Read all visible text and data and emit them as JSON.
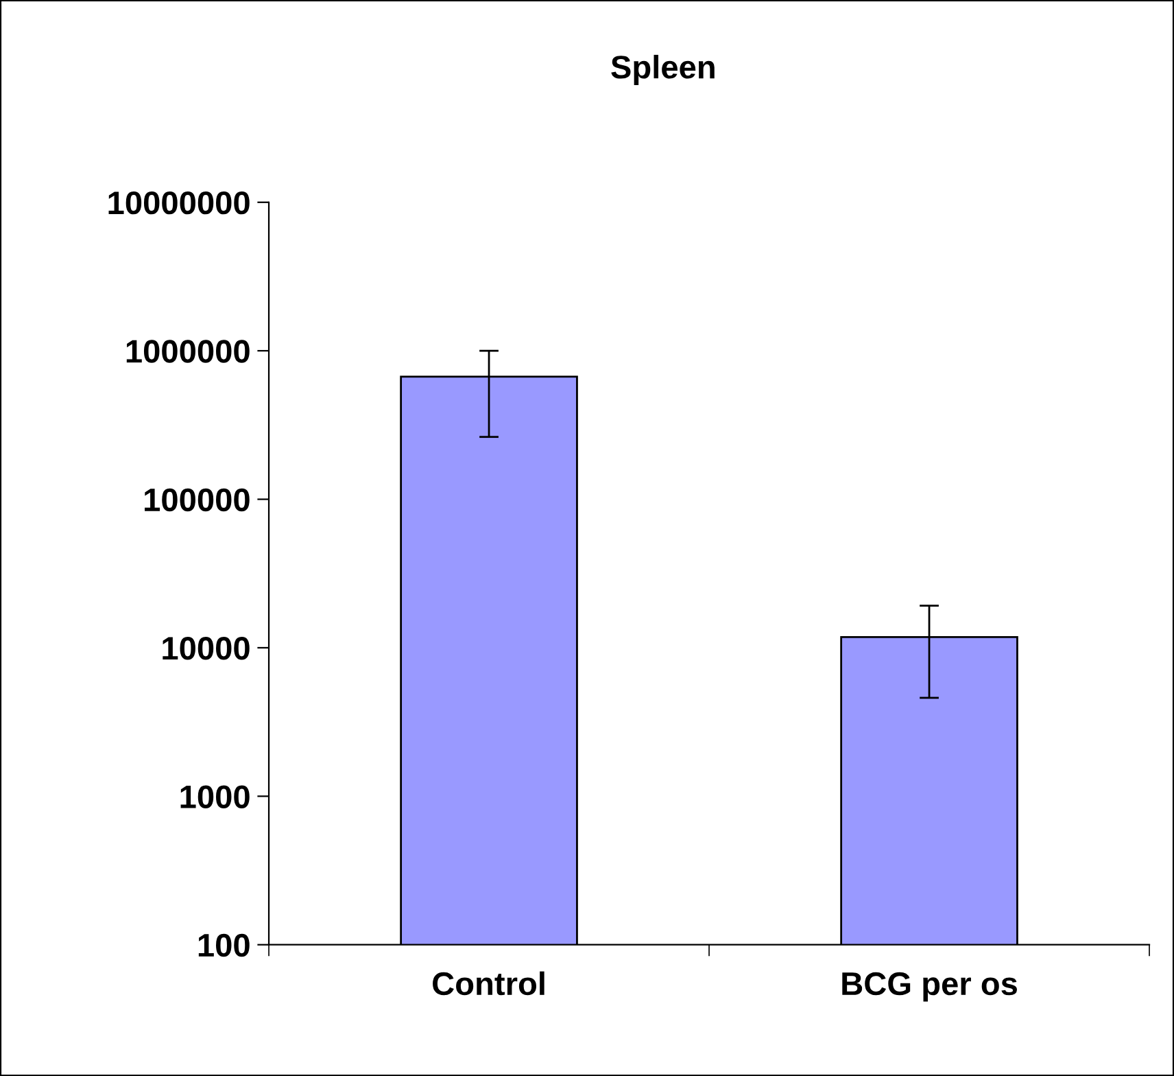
{
  "chart_data": {
    "type": "bar",
    "title": "Spleen",
    "categories": [
      "Control",
      "BCG per os"
    ],
    "values": [
      670000,
      11800
    ],
    "errors": [
      [
        263000,
        1000000
      ],
      [
        4600,
        19200
      ]
    ],
    "color": "#9999ff",
    "log": true,
    "ylim": [
      100,
      10000000
    ],
    "yticks": [
      100,
      1000,
      10000,
      100000,
      1000000,
      10000000
    ],
    "grid": false,
    "legend": false
  }
}
